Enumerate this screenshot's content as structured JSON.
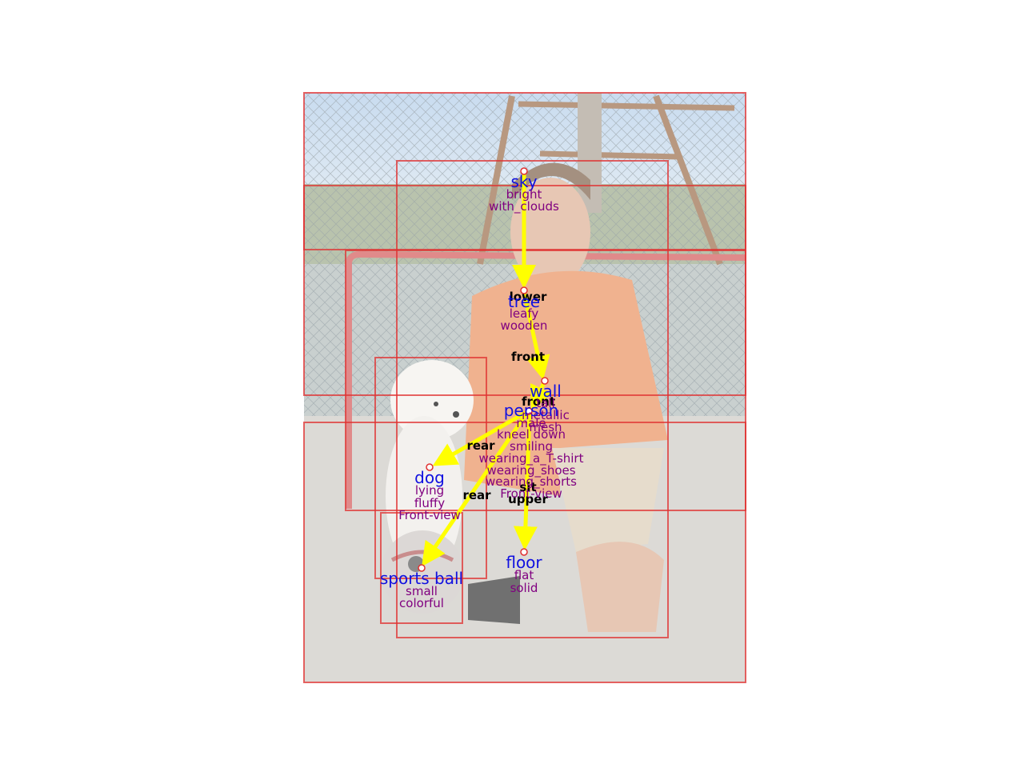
{
  "objects": [
    {
      "id": "sky",
      "name": "sky",
      "attributes": [
        "bright",
        "with_clouds"
      ]
    },
    {
      "id": "tree",
      "name": "tree",
      "attributes": [
        "leafy",
        "wooden"
      ]
    },
    {
      "id": "wall",
      "name": "wall",
      "attributes": [
        "tall",
        "metallic",
        "mesh"
      ]
    },
    {
      "id": "person",
      "name": "person",
      "attributes": [
        "male",
        "kneel down",
        "smiling",
        "wearing_a_T-shirt",
        "wearing_shoes",
        "wearing_shorts",
        "Front-view"
      ]
    },
    {
      "id": "dog",
      "name": "dog",
      "attributes": [
        "lying",
        "fluffy",
        "Front-view"
      ]
    },
    {
      "id": "sports_ball",
      "name": "sports ball",
      "attributes": [
        "small",
        "colorful"
      ]
    },
    {
      "id": "floor",
      "name": "floor",
      "attributes": [
        "flat",
        "solid"
      ]
    }
  ],
  "relations": [
    {
      "from": "sky",
      "to": "tree",
      "label": "lower"
    },
    {
      "from": "tree",
      "to": "wall",
      "label": "front"
    },
    {
      "from": "wall",
      "to": "person",
      "label": "front"
    },
    {
      "from": "person",
      "to": "dog",
      "label": "rear"
    },
    {
      "from": "person",
      "to": "sports_ball",
      "label": "rear"
    },
    {
      "from": "person",
      "to": "floor",
      "label": "sit"
    },
    {
      "from": "person",
      "to": "floor",
      "label": "upper"
    }
  ],
  "colors": {
    "photo_tint": "#c8c2b8",
    "bbox": "#e03030",
    "edge": "#ffff00",
    "object_name": "#1010e0",
    "attribute": "#800080",
    "relation": "#000000"
  }
}
